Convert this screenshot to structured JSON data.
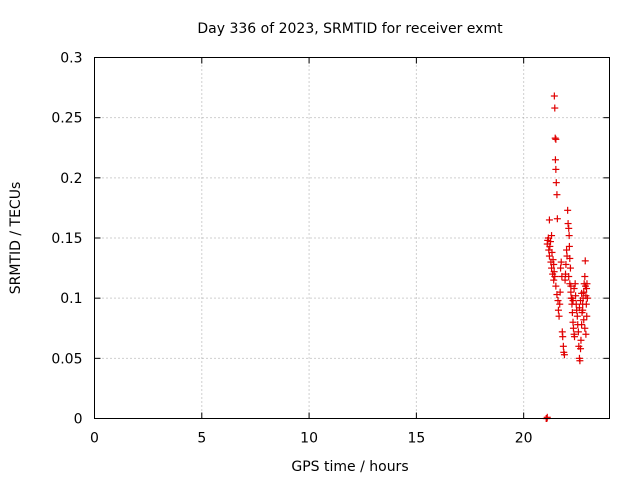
{
  "chart_data": {
    "type": "scatter",
    "title": "Day 336 of 2023, SRMTID for receiver exmt",
    "xlabel": "GPS time / hours",
    "ylabel": "SRMTID / TECUs",
    "xlim": [
      0,
      24
    ],
    "ylim": [
      0,
      0.3
    ],
    "x_ticks": [
      0,
      5,
      10,
      15,
      20
    ],
    "x_tick_labels": [
      "0",
      "5",
      "10",
      "15",
      "20"
    ],
    "y_ticks": [
      0,
      0.05,
      0.1,
      0.15,
      0.2,
      0.25,
      0.3
    ],
    "y_tick_labels": [
      "0",
      "0.05",
      "0.1",
      "0.15",
      "0.2",
      "0.25",
      "0.3"
    ],
    "grid": true,
    "marker": "+",
    "series": [
      {
        "name": "SRMTID",
        "color": "#e00000",
        "points": [
          [
            21.05,
            0.0
          ],
          [
            21.08,
            0.0
          ],
          [
            21.1,
            0.001
          ],
          [
            21.1,
            0.145
          ],
          [
            21.12,
            0.148
          ],
          [
            21.15,
            0.15
          ],
          [
            21.17,
            0.14
          ],
          [
            21.2,
            0.135
          ],
          [
            21.22,
            0.143
          ],
          [
            21.25,
            0.147
          ],
          [
            21.27,
            0.13
          ],
          [
            21.3,
            0.125
          ],
          [
            21.32,
            0.138
          ],
          [
            21.35,
            0.12
          ],
          [
            21.37,
            0.132
          ],
          [
            21.4,
            0.128
          ],
          [
            21.42,
            0.122
          ],
          [
            21.45,
            0.118
          ],
          [
            21.2,
            0.165
          ],
          [
            21.3,
            0.152
          ],
          [
            21.4,
            0.115
          ],
          [
            21.43,
            0.268
          ],
          [
            21.45,
            0.258
          ],
          [
            21.47,
            0.233
          ],
          [
            21.5,
            0.232
          ],
          [
            21.48,
            0.215
          ],
          [
            21.5,
            0.207
          ],
          [
            21.52,
            0.196
          ],
          [
            21.55,
            0.186
          ],
          [
            21.57,
            0.166
          ],
          [
            21.5,
            0.11
          ],
          [
            21.55,
            0.103
          ],
          [
            21.6,
            0.098
          ],
          [
            21.62,
            0.09
          ],
          [
            21.65,
            0.085
          ],
          [
            21.68,
            0.095
          ],
          [
            21.7,
            0.105
          ],
          [
            21.72,
            0.125
          ],
          [
            21.75,
            0.13
          ],
          [
            21.78,
            0.118
          ],
          [
            21.8,
            0.072
          ],
          [
            21.82,
            0.068
          ],
          [
            21.85,
            0.06
          ],
          [
            21.87,
            0.055
          ],
          [
            21.9,
            0.053
          ],
          [
            21.93,
            0.115
          ],
          [
            21.95,
            0.12
          ],
          [
            21.97,
            0.128
          ],
          [
            22.0,
            0.14
          ],
          [
            22.02,
            0.135
          ],
          [
            22.05,
            0.173
          ],
          [
            22.07,
            0.162
          ],
          [
            22.1,
            0.158
          ],
          [
            22.12,
            0.152
          ],
          [
            22.13,
            0.143
          ],
          [
            22.15,
            0.133
          ],
          [
            22.18,
            0.125
          ],
          [
            22.2,
            0.11
          ],
          [
            22.22,
            0.1
          ],
          [
            22.25,
            0.095
          ],
          [
            22.27,
            0.088
          ],
          [
            22.3,
            0.08
          ],
          [
            22.32,
            0.075
          ],
          [
            22.35,
            0.07
          ],
          [
            22.37,
            0.068
          ],
          [
            22.1,
            0.118
          ],
          [
            22.15,
            0.112
          ],
          [
            22.2,
            0.105
          ],
          [
            22.25,
            0.1
          ],
          [
            22.3,
            0.098
          ],
          [
            22.35,
            0.108
          ],
          [
            22.4,
            0.112
          ],
          [
            22.42,
            0.102
          ],
          [
            22.45,
            0.095
          ],
          [
            22.47,
            0.09
          ],
          [
            22.5,
            0.085
          ],
          [
            22.52,
            0.078
          ],
          [
            22.55,
            0.072
          ],
          [
            22.57,
            0.06
          ],
          [
            22.6,
            0.05
          ],
          [
            22.62,
            0.048
          ],
          [
            22.65,
            0.058
          ],
          [
            22.67,
            0.065
          ],
          [
            22.7,
            0.078
          ],
          [
            22.72,
            0.088
          ],
          [
            22.75,
            0.095
          ],
          [
            22.77,
            0.1
          ],
          [
            22.8,
            0.105
          ],
          [
            22.82,
            0.112
          ],
          [
            22.85,
            0.118
          ],
          [
            22.87,
            0.131
          ],
          [
            22.88,
            0.11
          ],
          [
            22.9,
            0.102
          ],
          [
            22.92,
            0.095
          ],
          [
            22.94,
            0.085
          ],
          [
            22.6,
            0.092
          ],
          [
            22.65,
            0.098
          ],
          [
            22.7,
            0.104
          ],
          [
            22.75,
            0.09
          ],
          [
            22.8,
            0.082
          ],
          [
            22.85,
            0.075
          ],
          [
            22.9,
            0.07
          ],
          [
            22.93,
            0.108
          ],
          [
            22.95,
            0.112
          ],
          [
            22.97,
            0.1
          ]
        ]
      }
    ]
  }
}
